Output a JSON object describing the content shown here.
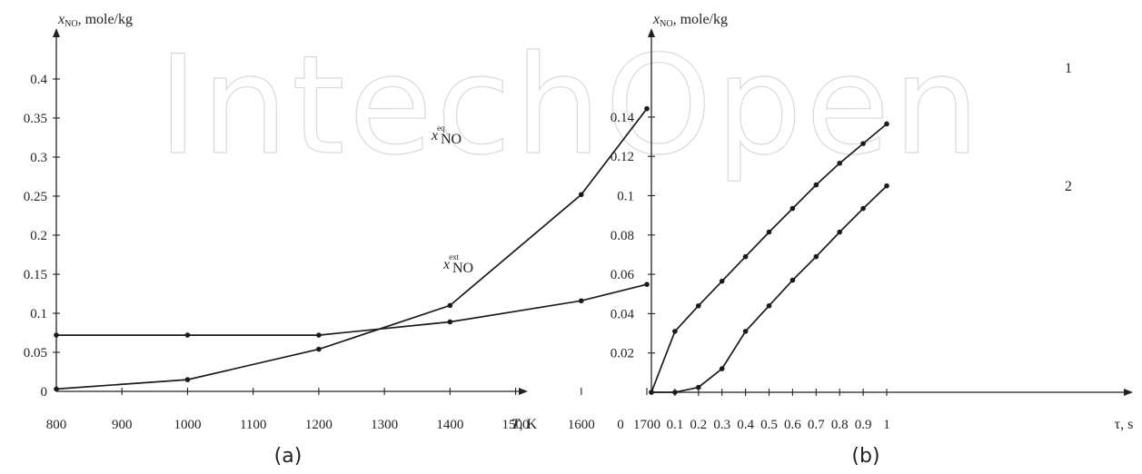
{
  "watermark": "IntechOpen",
  "chart_data": [
    {
      "type": "line",
      "panel_label": "(a)",
      "ylabel_main": "x",
      "ylabel_sub": "NO",
      "ylabel_rest": ", mole/kg",
      "xlabel_italic": "T",
      "xlabel_rest": ", K",
      "xlim": [
        800,
        1700
      ],
      "ylim": [
        0,
        0.45
      ],
      "x_ticks": [
        800,
        900,
        1000,
        1100,
        1200,
        1300,
        1400,
        1500,
        1600,
        1700
      ],
      "x_tick_labels": [
        "800",
        "900",
        "1000",
        "1100",
        "1200",
        "1300",
        "1400",
        "1500",
        "1600",
        "1700"
      ],
      "y_ticks": [
        0,
        0.05,
        0.1,
        0.15,
        0.2,
        0.25,
        0.3,
        0.35,
        0.4
      ],
      "y_tick_labels": [
        "0",
        "0.05",
        "0.1",
        "0.15",
        "0.2",
        "0.25",
        "0.3",
        "0.35",
        "0.4"
      ],
      "series": [
        {
          "label_main": "x",
          "label_sub": "NO",
          "label_sup": "eq",
          "x": [
            800,
            1000,
            1200,
            1400,
            1600,
            1700
          ],
          "y": [
            0.003,
            0.015,
            0.054,
            0.11,
            0.252,
            0.362
          ]
        },
        {
          "label_main": "x",
          "label_sub": "NO",
          "label_sup": "ext",
          "x": [
            800,
            1000,
            1200,
            1400,
            1600,
            1700
          ],
          "y": [
            0.072,
            0.072,
            0.072,
            0.089,
            0.116,
            0.137
          ]
        }
      ]
    },
    {
      "type": "line",
      "panel_label": "(b)",
      "ylabel_main": "x",
      "ylabel_sub": "NO",
      "ylabel_rest": ", mole/kg",
      "xlabel_italic": "",
      "xlabel_rest": "τ, s",
      "origin_label": "0",
      "xlim": [
        0,
        1
      ],
      "ylim": [
        0,
        0.15
      ],
      "x_ticks": [
        0.1,
        0.2,
        0.3,
        0.4,
        0.5,
        0.6,
        0.7,
        0.8,
        0.9,
        1
      ],
      "x_tick_labels": [
        "0.1",
        "0.2",
        "0.3",
        "0.4",
        "0.5",
        "0.6",
        "0.7",
        "0.8",
        "0.9",
        "1"
      ],
      "y_ticks": [
        0.02,
        0.04,
        0.06,
        0.08,
        0.1,
        0.12,
        0.14
      ],
      "y_tick_labels": [
        "0.02",
        "0.04",
        "0.06",
        "0.08",
        "0.1",
        "0.12",
        "0.14"
      ],
      "series": [
        {
          "label": "1",
          "x": [
            0,
            0.1,
            0.2,
            0.3,
            0.4,
            0.5,
            0.6,
            0.7,
            0.8,
            0.9,
            1
          ],
          "y": [
            0,
            0.031,
            0.044,
            0.0565,
            0.069,
            0.0815,
            0.0935,
            0.1055,
            0.1165,
            0.1265,
            0.1365
          ]
        },
        {
          "label": "2",
          "x": [
            0,
            0.1,
            0.2,
            0.3,
            0.4,
            0.5,
            0.6,
            0.7,
            0.8,
            0.9,
            1
          ],
          "y": [
            0,
            0,
            0.0025,
            0.012,
            0.031,
            0.044,
            0.057,
            0.069,
            0.0815,
            0.0935,
            0.105
          ]
        }
      ]
    }
  ]
}
